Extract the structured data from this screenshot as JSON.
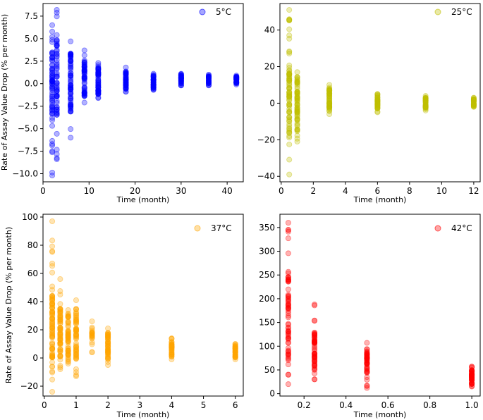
{
  "figure": {
    "ylabel": "Rate of Assay Value Drop (% per month)"
  },
  "chart_data": [
    {
      "type": "scatter",
      "title": "",
      "legend": "5°C",
      "legend_position": "top-right",
      "color": "#0000ff",
      "xlabel": "Time (month)",
      "ylabel": "Rate of Assay Value Drop (% per month)",
      "xlim": [
        0,
        43.5
      ],
      "ylim": [
        -10.9,
        8.9
      ],
      "xticks": [
        0,
        10,
        20,
        30,
        40
      ],
      "yticks": [
        -10.0,
        -7.5,
        -5.0,
        -2.5,
        0.0,
        2.5,
        5.0,
        7.5
      ],
      "ytick_labels": [
        "−10.0",
        "−7.5",
        "−5.0",
        "−2.5",
        "0.0",
        "2.5",
        "5.0",
        "7.5"
      ],
      "groups": [
        {
          "x": 2,
          "min": -10.2,
          "max": 6.5,
          "dense": [
            -3.5,
            3.5
          ],
          "n": 70
        },
        {
          "x": 3,
          "min": -8.4,
          "max": 8.2,
          "dense": [
            -3.5,
            5.0
          ],
          "n": 60
        },
        {
          "x": 6,
          "min": -6.0,
          "max": 4.7,
          "dense": [
            -3.2,
            3.5
          ],
          "n": 70
        },
        {
          "x": 9,
          "min": -2.1,
          "max": 3.7,
          "dense": [
            -1.5,
            2.5
          ],
          "n": 55
        },
        {
          "x": 12,
          "min": -1.6,
          "max": 2.3,
          "dense": [
            -1.2,
            2.0
          ],
          "n": 55
        },
        {
          "x": 18,
          "min": -0.9,
          "max": 1.8,
          "dense": [
            -0.6,
            1.5
          ],
          "n": 45
        },
        {
          "x": 24,
          "min": -0.7,
          "max": 1.1,
          "dense": [
            -0.5,
            1.0
          ],
          "n": 40
        },
        {
          "x": 30,
          "min": -0.2,
          "max": 1.1,
          "dense": [
            0.0,
            0.9
          ],
          "n": 35
        },
        {
          "x": 36,
          "min": -0.2,
          "max": 1.0,
          "dense": [
            0.0,
            0.8
          ],
          "n": 30
        },
        {
          "x": 42,
          "min": -0.1,
          "max": 0.9,
          "dense": [
            0.0,
            0.8
          ],
          "n": 30
        }
      ]
    },
    {
      "type": "scatter",
      "title": "",
      "legend": "25°C",
      "legend_position": "top-right",
      "color": "#bfbf00",
      "xlabel": "Time (month)",
      "ylabel": "",
      "xlim": [
        -0.08,
        12.4
      ],
      "ylim": [
        -43.0,
        54.5
      ],
      "xticks": [
        0,
        2,
        4,
        6,
        8,
        10,
        12
      ],
      "yticks": [
        -40,
        -20,
        0,
        20,
        40
      ],
      "ytick_labels": [
        "−40",
        "−20",
        "0",
        "20",
        "40"
      ],
      "groups": [
        {
          "x": 0.5,
          "min": -39.0,
          "max": 51.0,
          "dense": [
            -20.0,
            20.0
          ],
          "n": 80
        },
        {
          "x": 1,
          "min": -21.0,
          "max": 17.0,
          "dense": [
            -15.0,
            15.0
          ],
          "n": 70
        },
        {
          "x": 3,
          "min": -6.0,
          "max": 10.0,
          "dense": [
            -4.0,
            8.0
          ],
          "n": 50
        },
        {
          "x": 6,
          "min": -5.0,
          "max": 5.0,
          "dense": [
            -3.0,
            4.0
          ],
          "n": 40
        },
        {
          "x": 9,
          "min": -4.0,
          "max": 4.0,
          "dense": [
            -3.0,
            3.0
          ],
          "n": 35
        },
        {
          "x": 12,
          "min": -2.0,
          "max": 3.0,
          "dense": [
            -1.5,
            2.5
          ],
          "n": 30
        }
      ]
    },
    {
      "type": "scatter",
      "title": "",
      "legend": "37°C",
      "legend_position": "top-right",
      "color": "#ffa500",
      "xlabel": "Time (month)",
      "ylabel": "Rate of Assay Value Drop (% per month)",
      "xlim": [
        -0.04,
        6.25
      ],
      "ylim": [
        -27.0,
        102.0
      ],
      "xticks": [
        0,
        1,
        2,
        3,
        4,
        5,
        6
      ],
      "yticks": [
        -20,
        0,
        20,
        40,
        60,
        80,
        100
      ],
      "ytick_labels": [
        "−20",
        "0",
        "20",
        "40",
        "60",
        "80",
        "100"
      ],
      "groups": [
        {
          "x": 0.25,
          "min": -24.0,
          "max": 97.0,
          "dense": [
            0.0,
            45.0
          ],
          "n": 90
        },
        {
          "x": 0.5,
          "min": -8.0,
          "max": 56.0,
          "dense": [
            0.0,
            35.0
          ],
          "n": 70
        },
        {
          "x": 0.75,
          "min": -4.0,
          "max": 34.0,
          "dense": [
            0.0,
            30.0
          ],
          "n": 60
        },
        {
          "x": 1,
          "min": -13.0,
          "max": 41.0,
          "dense": [
            0.0,
            35.0
          ],
          "n": 60
        },
        {
          "x": 1.5,
          "min": 4.0,
          "max": 26.0,
          "dense": [
            8.0,
            22.0
          ],
          "n": 20
        },
        {
          "x": 2,
          "min": -5.0,
          "max": 21.0,
          "dense": [
            0.0,
            18.0
          ],
          "n": 50
        },
        {
          "x": 4,
          "min": -1.0,
          "max": 14.0,
          "dense": [
            0.0,
            10.0
          ],
          "n": 40
        },
        {
          "x": 6,
          "min": -1.0,
          "max": 10.0,
          "dense": [
            0.0,
            8.0
          ],
          "n": 35
        }
      ]
    },
    {
      "type": "scatter",
      "title": "",
      "legend": "42°C",
      "legend_position": "top-right",
      "color": "#ff0000",
      "xlabel": "Time (month)",
      "ylabel": "",
      "xlim": [
        0.085,
        1.04
      ],
      "ylim": [
        -5.0,
        378.0
      ],
      "xticks": [
        0.2,
        0.4,
        0.6,
        0.8,
        1.0
      ],
      "xtick_labels": [
        "0.2",
        "0.4",
        "0.6",
        "0.8",
        "1.0"
      ],
      "yticks": [
        0,
        50,
        100,
        150,
        200,
        250,
        300,
        350
      ],
      "groups": [
        {
          "x": 0.125,
          "min": 20.0,
          "max": 360.0,
          "dense": [
            60.0,
            260.0
          ],
          "n": 70
        },
        {
          "x": 0.25,
          "min": 30.0,
          "max": 188.0,
          "dense": [
            50.0,
            130.0
          ],
          "n": 55
        },
        {
          "x": 0.5,
          "min": 12.0,
          "max": 107.0,
          "dense": [
            40.0,
            90.0
          ],
          "n": 45
        },
        {
          "x": 1.0,
          "min": 15.0,
          "max": 57.0,
          "dense": [
            20.0,
            50.0
          ],
          "n": 50
        }
      ]
    }
  ]
}
